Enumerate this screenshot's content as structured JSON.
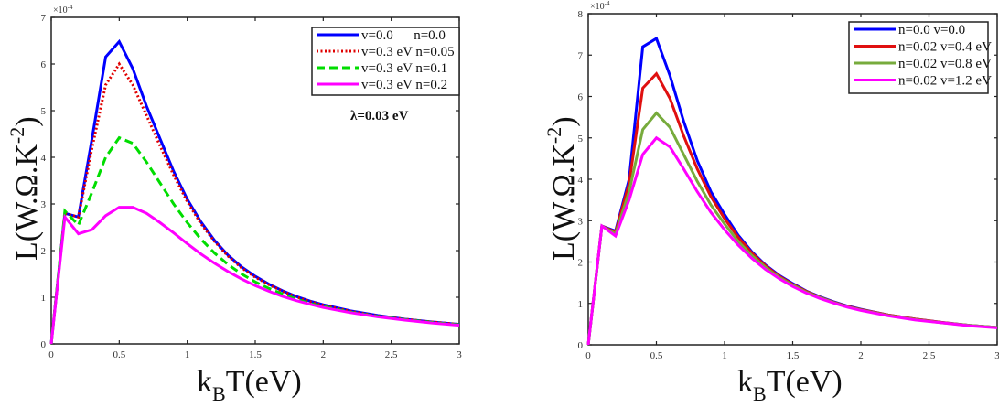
{
  "chart_data": [
    {
      "type": "line",
      "title": "",
      "xlabel": "k_B T(eV)",
      "xlabel_main": "k",
      "xlabel_sub": "B",
      "xlabel_rest": "T(eV)",
      "ylabel": "L(W.Ω.K^-2)",
      "ylabel_main": "L(W.Ω.K",
      "ylabel_sup": "-2",
      "ylabel_close": ")",
      "y_multiplier": "×10",
      "y_multiplier_exp": "-4",
      "xlim": [
        0,
        3
      ],
      "ylim": [
        0,
        7
      ],
      "xticks": [
        0,
        0.5,
        1,
        1.5,
        2,
        2.5,
        3
      ],
      "xtick_labels": [
        "0",
        "0.5",
        "1",
        "1.5",
        "2",
        "2.5",
        "3"
      ],
      "yticks": [
        0,
        1,
        2,
        3,
        4,
        5,
        6,
        7
      ],
      "ytick_labels": [
        "0",
        "1",
        "2",
        "3",
        "4",
        "5",
        "6",
        "7"
      ],
      "grid": false,
      "legend_position": "top-right",
      "annotation": "λ=0.03 eV",
      "x": [
        0,
        0.1,
        0.2,
        0.3,
        0.4,
        0.5,
        0.6,
        0.7,
        0.8,
        0.9,
        1.0,
        1.1,
        1.2,
        1.3,
        1.4,
        1.5,
        1.6,
        1.7,
        1.8,
        1.9,
        2.0,
        2.2,
        2.4,
        2.6,
        2.8,
        3.0
      ],
      "series": [
        {
          "name": "v=0.0      n=0.0",
          "color": "#0000ff",
          "style": "solid",
          "values": [
            0,
            2.8,
            2.72,
            4.4,
            6.15,
            6.48,
            5.9,
            5.1,
            4.4,
            3.7,
            3.1,
            2.62,
            2.22,
            1.9,
            1.65,
            1.45,
            1.28,
            1.14,
            1.02,
            0.92,
            0.84,
            0.71,
            0.61,
            0.53,
            0.47,
            0.42
          ]
        },
        {
          "name": "v=0.3 eV n=0.05",
          "color": "#e00000",
          "style": "dotted",
          "values": [
            0,
            2.8,
            2.72,
            4.2,
            5.55,
            6.0,
            5.55,
            4.9,
            4.25,
            3.62,
            3.05,
            2.58,
            2.2,
            1.88,
            1.63,
            1.43,
            1.27,
            1.13,
            1.01,
            0.91,
            0.83,
            0.7,
            0.6,
            0.53,
            0.47,
            0.42
          ]
        },
        {
          "name": "v=0.3 eV n=0.1",
          "color": "#00dd00",
          "style": "dashed",
          "values": [
            0,
            2.85,
            2.55,
            3.25,
            4.0,
            4.42,
            4.3,
            3.9,
            3.45,
            3.0,
            2.6,
            2.25,
            1.95,
            1.7,
            1.5,
            1.33,
            1.19,
            1.07,
            0.96,
            0.87,
            0.8,
            0.68,
            0.59,
            0.52,
            0.46,
            0.41
          ]
        },
        {
          "name": "v=0.3 eV n=0.2",
          "color": "#ff00ff",
          "style": "solid",
          "values": [
            0,
            2.72,
            2.36,
            2.45,
            2.75,
            2.93,
            2.93,
            2.8,
            2.6,
            2.38,
            2.15,
            1.93,
            1.73,
            1.55,
            1.39,
            1.25,
            1.13,
            1.02,
            0.93,
            0.85,
            0.78,
            0.67,
            0.58,
            0.51,
            0.45,
            0.4
          ]
        }
      ]
    },
    {
      "type": "line",
      "title": "",
      "xlabel": "k_B T(eV)",
      "xlabel_main": "k",
      "xlabel_sub": "B",
      "xlabel_rest": "T(eV)",
      "ylabel": "L(W.Ω.K^-2)",
      "ylabel_main": "L(W.Ω.K",
      "ylabel_sup": "-2",
      "ylabel_close": ")",
      "y_multiplier": "×10",
      "y_multiplier_exp": "-4",
      "xlim": [
        0,
        3
      ],
      "ylim": [
        0,
        8
      ],
      "xticks": [
        0,
        0.5,
        1,
        1.5,
        2,
        2.5,
        3
      ],
      "xtick_labels": [
        "0",
        "0.5",
        "1",
        "1.5",
        "2",
        "2.5",
        "3"
      ],
      "yticks": [
        0,
        1,
        2,
        3,
        4,
        5,
        6,
        7,
        8
      ],
      "ytick_labels": [
        "0",
        "1",
        "2",
        "3",
        "4",
        "5",
        "6",
        "7",
        "8"
      ],
      "grid": false,
      "legend_position": "top-right",
      "x": [
        0,
        0.1,
        0.2,
        0.3,
        0.4,
        0.5,
        0.6,
        0.7,
        0.8,
        0.9,
        1.0,
        1.1,
        1.2,
        1.3,
        1.4,
        1.5,
        1.6,
        1.7,
        1.8,
        1.9,
        2.0,
        2.2,
        2.4,
        2.6,
        2.8,
        3.0
      ],
      "series": [
        {
          "name": "n=0.0 v=0.0",
          "color": "#0000ff",
          "style": "solid",
          "values": [
            0,
            2.87,
            2.75,
            4.0,
            7.2,
            7.4,
            6.5,
            5.4,
            4.45,
            3.7,
            3.15,
            2.65,
            2.25,
            1.93,
            1.68,
            1.48,
            1.3,
            1.16,
            1.04,
            0.94,
            0.86,
            0.72,
            0.62,
            0.54,
            0.47,
            0.42
          ]
        },
        {
          "name": "n=0.02 v=0.4 eV",
          "color": "#e01010",
          "style": "solid",
          "values": [
            0,
            2.87,
            2.72,
            3.9,
            6.2,
            6.55,
            5.95,
            5.05,
            4.25,
            3.58,
            3.05,
            2.6,
            2.22,
            1.91,
            1.66,
            1.46,
            1.29,
            1.15,
            1.03,
            0.93,
            0.85,
            0.72,
            0.62,
            0.54,
            0.47,
            0.42
          ]
        },
        {
          "name": "n=0.02 v=0.8 eV",
          "color": "#77ab3c",
          "style": "solid",
          "values": [
            0,
            2.87,
            2.68,
            3.7,
            5.2,
            5.6,
            5.25,
            4.6,
            3.95,
            3.38,
            2.92,
            2.5,
            2.16,
            1.87,
            1.63,
            1.44,
            1.27,
            1.14,
            1.02,
            0.92,
            0.84,
            0.71,
            0.61,
            0.53,
            0.47,
            0.42
          ]
        },
        {
          "name": "n=0.02 v=1.2 eV",
          "color": "#ff00ff",
          "style": "solid",
          "values": [
            0,
            2.87,
            2.63,
            3.5,
            4.6,
            5.0,
            4.78,
            4.25,
            3.7,
            3.2,
            2.78,
            2.41,
            2.09,
            1.82,
            1.6,
            1.41,
            1.25,
            1.12,
            1.01,
            0.91,
            0.83,
            0.7,
            0.6,
            0.53,
            0.46,
            0.41
          ]
        }
      ]
    }
  ]
}
